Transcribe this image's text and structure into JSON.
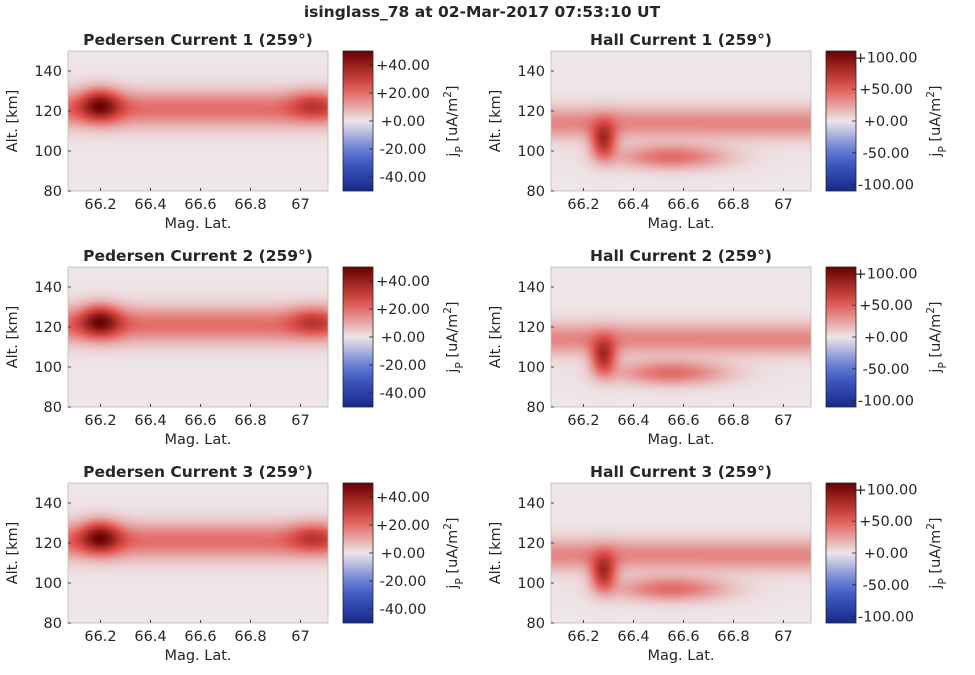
{
  "figure": {
    "title": "isinglass_78 at 02-Mar-2017 07:53:10 UT"
  },
  "colors": {
    "cmap_low": "#17288a",
    "cmap_mid_low": "#4a66cf",
    "cmap_mid": "#eee5e8",
    "cmap_mid_high": "#e0504a",
    "cmap_high": "#660000",
    "axis": "#262626",
    "frame": "#bcbcbc"
  },
  "chart_data": [
    {
      "type": "heatmap",
      "title": "Pedersen Current 1 (259°)",
      "xlabel": "Mag. Lat.",
      "ylabel": "Alt. [km]",
      "colorbar_label": "j_P [uA/m^2]",
      "xlim": [
        66.07,
        67.11
      ],
      "ylim": [
        80,
        150
      ],
      "xticks": [
        66.2,
        66.4,
        66.6,
        66.8,
        67.0
      ],
      "xtick_labels": [
        "66.2",
        "66.4",
        "66.6",
        "66.8",
        "67"
      ],
      "yticks": [
        80,
        100,
        120,
        140
      ],
      "ytick_labels": [
        "80",
        "100",
        "120",
        "140"
      ],
      "clim": [
        -50,
        50
      ],
      "cbar_ticks": [
        40,
        20,
        0,
        -20,
        -40
      ],
      "cbar_tick_labels": [
        "+40.00",
        "+20.00",
        "+0.00",
        "-20.00",
        "-40.00"
      ],
      "features": [
        {
          "kind": "band",
          "x": [
            66.07,
            67.11
          ],
          "y_center": 121,
          "y_sigma": 9,
          "value": 20
        },
        {
          "kind": "blob",
          "x_center": 66.2,
          "y_center": 123,
          "x_sigma": 0.08,
          "y_sigma": 8,
          "value": 30
        },
        {
          "kind": "blob",
          "x_center": 67.05,
          "y_center": 123,
          "x_sigma": 0.09,
          "y_sigma": 7,
          "value": 14
        }
      ]
    },
    {
      "type": "heatmap",
      "title": "Hall Current 1 (259°)",
      "xlabel": "Mag. Lat.",
      "ylabel": "Alt. [km]",
      "colorbar_label": "j_P [uA/m^2]",
      "xlim": [
        66.07,
        67.11
      ],
      "ylim": [
        80,
        150
      ],
      "xticks": [
        66.2,
        66.4,
        66.6,
        66.8,
        67.0
      ],
      "xtick_labels": [
        "66.2",
        "66.4",
        "66.6",
        "66.8",
        "67"
      ],
      "yticks": [
        80,
        100,
        120,
        140
      ],
      "ytick_labels": [
        "80",
        "100",
        "120",
        "140"
      ],
      "clim": [
        -110,
        110
      ],
      "cbar_ticks": [
        100,
        50,
        0,
        -50,
        -100
      ],
      "cbar_tick_labels": [
        "+100.00",
        "+50.00",
        "+0.00",
        "-50.00",
        "-100.00"
      ],
      "features": [
        {
          "kind": "band",
          "x": [
            66.07,
            67.11
          ],
          "y_center": 114,
          "y_sigma": 8,
          "value": 35
        },
        {
          "kind": "blob",
          "x_center": 66.28,
          "y_center": 105,
          "x_sigma": 0.05,
          "y_sigma": 9,
          "value": 70
        },
        {
          "kind": "blob",
          "x_center": 66.55,
          "y_center": 97,
          "x_sigma": 0.22,
          "y_sigma": 6,
          "value": 45
        }
      ]
    },
    {
      "type": "heatmap",
      "title": "Pedersen Current 2 (259°)",
      "xlabel": "Mag. Lat.",
      "ylabel": "Alt. [km]",
      "colorbar_label": "j_P [uA/m^2]",
      "xlim": [
        66.07,
        67.11
      ],
      "ylim": [
        80,
        150
      ],
      "xticks": [
        66.2,
        66.4,
        66.6,
        66.8,
        67.0
      ],
      "xtick_labels": [
        "66.2",
        "66.4",
        "66.6",
        "66.8",
        "67"
      ],
      "yticks": [
        80,
        100,
        120,
        140
      ],
      "ytick_labels": [
        "80",
        "100",
        "120",
        "140"
      ],
      "clim": [
        -50,
        50
      ],
      "cbar_ticks": [
        40,
        20,
        0,
        -20,
        -40
      ],
      "cbar_tick_labels": [
        "+40.00",
        "+20.00",
        "+0.00",
        "-20.00",
        "-40.00"
      ],
      "features": [
        {
          "kind": "band",
          "x": [
            66.07,
            67.11
          ],
          "y_center": 121,
          "y_sigma": 9,
          "value": 20
        },
        {
          "kind": "blob",
          "x_center": 66.2,
          "y_center": 123,
          "x_sigma": 0.08,
          "y_sigma": 8,
          "value": 30
        },
        {
          "kind": "blob",
          "x_center": 67.05,
          "y_center": 123,
          "x_sigma": 0.09,
          "y_sigma": 7,
          "value": 14
        }
      ]
    },
    {
      "type": "heatmap",
      "title": "Hall Current 2 (259°)",
      "xlabel": "Mag. Lat.",
      "ylabel": "Alt. [km]",
      "colorbar_label": "j_P [uA/m^2]",
      "xlim": [
        66.07,
        67.11
      ],
      "ylim": [
        80,
        150
      ],
      "xticks": [
        66.2,
        66.4,
        66.6,
        66.8,
        67.0
      ],
      "xtick_labels": [
        "66.2",
        "66.4",
        "66.6",
        "66.8",
        "67"
      ],
      "yticks": [
        80,
        100,
        120,
        140
      ],
      "ytick_labels": [
        "80",
        "100",
        "120",
        "140"
      ],
      "clim": [
        -110,
        110
      ],
      "cbar_ticks": [
        100,
        50,
        0,
        -50,
        -100
      ],
      "cbar_tick_labels": [
        "+100.00",
        "+50.00",
        "+0.00",
        "-50.00",
        "-100.00"
      ],
      "features": [
        {
          "kind": "band",
          "x": [
            66.07,
            67.11
          ],
          "y_center": 114,
          "y_sigma": 8,
          "value": 35
        },
        {
          "kind": "blob",
          "x_center": 66.28,
          "y_center": 105,
          "x_sigma": 0.05,
          "y_sigma": 9,
          "value": 70
        },
        {
          "kind": "blob",
          "x_center": 66.55,
          "y_center": 97,
          "x_sigma": 0.22,
          "y_sigma": 6,
          "value": 45
        }
      ]
    },
    {
      "type": "heatmap",
      "title": "Pedersen Current 3 (259°)",
      "xlabel": "Mag. Lat.",
      "ylabel": "Alt. [km]",
      "colorbar_label": "j_P [uA/m^2]",
      "xlim": [
        66.07,
        67.11
      ],
      "ylim": [
        80,
        150
      ],
      "xticks": [
        66.2,
        66.4,
        66.6,
        66.8,
        67.0
      ],
      "xtick_labels": [
        "66.2",
        "66.4",
        "66.6",
        "66.8",
        "67"
      ],
      "yticks": [
        80,
        100,
        120,
        140
      ],
      "ytick_labels": [
        "80",
        "100",
        "120",
        "140"
      ],
      "clim": [
        -50,
        50
      ],
      "cbar_ticks": [
        40,
        20,
        0,
        -20,
        -40
      ],
      "cbar_tick_labels": [
        "+40.00",
        "+20.00",
        "+0.00",
        "-20.00",
        "-40.00"
      ],
      "features": [
        {
          "kind": "band",
          "x": [
            66.07,
            67.11
          ],
          "y_center": 121,
          "y_sigma": 9,
          "value": 20
        },
        {
          "kind": "blob",
          "x_center": 66.2,
          "y_center": 123,
          "x_sigma": 0.08,
          "y_sigma": 8,
          "value": 30
        },
        {
          "kind": "blob",
          "x_center": 67.05,
          "y_center": 123,
          "x_sigma": 0.09,
          "y_sigma": 7,
          "value": 14
        }
      ]
    },
    {
      "type": "heatmap",
      "title": "Hall Current 3 (259°)",
      "xlabel": "Mag. Lat.",
      "ylabel": "Alt. [km]",
      "colorbar_label": "j_P [uA/m^2]",
      "xlim": [
        66.07,
        67.11
      ],
      "ylim": [
        80,
        150
      ],
      "xticks": [
        66.2,
        66.4,
        66.6,
        66.8,
        67.0
      ],
      "xtick_labels": [
        "66.2",
        "66.4",
        "66.6",
        "66.8",
        "67"
      ],
      "yticks": [
        80,
        100,
        120,
        140
      ],
      "ytick_labels": [
        "80",
        "100",
        "120",
        "140"
      ],
      "clim": [
        -110,
        110
      ],
      "cbar_ticks": [
        100,
        50,
        0,
        -50,
        -100
      ],
      "cbar_tick_labels": [
        "+100.00",
        "+50.00",
        "+0.00",
        "-50.00",
        "-100.00"
      ],
      "features": [
        {
          "kind": "band",
          "x": [
            66.07,
            67.11
          ],
          "y_center": 114,
          "y_sigma": 8,
          "value": 35
        },
        {
          "kind": "blob",
          "x_center": 66.28,
          "y_center": 105,
          "x_sigma": 0.05,
          "y_sigma": 9,
          "value": 70
        },
        {
          "kind": "blob",
          "x_center": 66.55,
          "y_center": 97,
          "x_sigma": 0.22,
          "y_sigma": 6,
          "value": 45
        }
      ]
    }
  ]
}
